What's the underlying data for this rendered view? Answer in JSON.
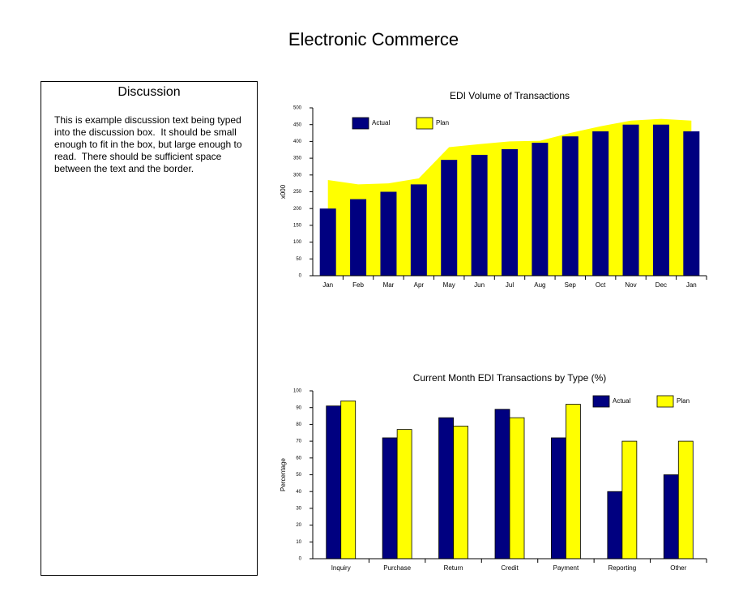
{
  "title": "Electronic Commerce",
  "discussion": {
    "heading": "Discussion",
    "text": "This is example discussion text being typed into the discussion box.  It should be small enough to fit in the box, but large enough to read.  There should be sufficient space between the text and the border."
  },
  "chart_data": [
    {
      "type": "combo",
      "title": "EDI Volume of Transactions",
      "y_label": "x000",
      "categories": [
        "Jan",
        "Feb",
        "Mar",
        "Apr",
        "May",
        "Jun",
        "Jul",
        "Aug",
        "Sep",
        "Oct",
        "Nov",
        "Dec",
        "Jan"
      ],
      "series": [
        {
          "name": "Actual",
          "type": "bar",
          "color": "#000080",
          "values": [
            200,
            228,
            250,
            272,
            345,
            360,
            377,
            396,
            415,
            430,
            450,
            450,
            430
          ]
        },
        {
          "name": "Plan",
          "type": "area",
          "color": "#ffff00",
          "values": [
            285,
            272,
            275,
            290,
            383,
            392,
            400,
            402,
            425,
            445,
            462,
            467,
            462
          ]
        }
      ],
      "ylim": [
        0,
        500
      ],
      "yticks": [
        0,
        50,
        100,
        150,
        200,
        250,
        300,
        350,
        400,
        450,
        500
      ],
      "legend": "top-left"
    },
    {
      "type": "bar",
      "title": "Current Month EDI Transactions by Type (%)",
      "y_label": "Percentage",
      "categories": [
        "Inquiry",
        "Purchase",
        "Return",
        "Credit",
        "Payment",
        "Reporting",
        "Other"
      ],
      "series": [
        {
          "name": "Actual",
          "color": "#000080",
          "values": [
            91,
            72,
            84,
            89,
            72,
            40,
            50
          ]
        },
        {
          "name": "Plan",
          "color": "#ffff00",
          "values": [
            94,
            77,
            79,
            84,
            92,
            70,
            70
          ]
        }
      ],
      "ylim": [
        0,
        100
      ],
      "yticks": [
        0,
        10,
        20,
        30,
        40,
        50,
        60,
        70,
        80,
        90,
        100
      ],
      "legend": "top-right"
    }
  ]
}
